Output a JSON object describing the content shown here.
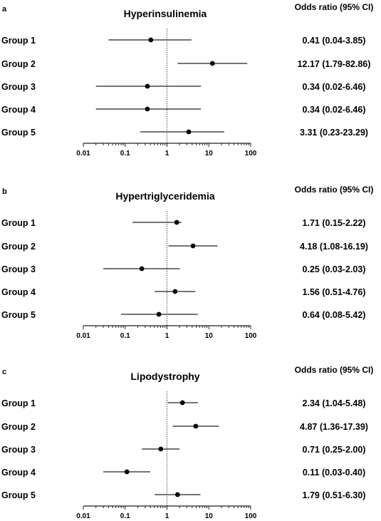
{
  "or_header": "Odds ratio (95% CI)",
  "chart_data": [
    {
      "type": "forest",
      "panel": "a",
      "title": "Hyperinsulinemia",
      "xscale": "log",
      "xlim": [
        0.01,
        100
      ],
      "xticks": [
        "0.01",
        "0.1",
        "1",
        "10",
        "100"
      ],
      "reference_line": 1,
      "groups": [
        "Group 1",
        "Group 2",
        "Group 3",
        "Group 4",
        "Group 5"
      ],
      "or": [
        0.41,
        12.17,
        0.34,
        0.34,
        3.31
      ],
      "lower": [
        0.04,
        1.79,
        0.02,
        0.02,
        0.23
      ],
      "upper": [
        3.85,
        82.86,
        6.46,
        6.46,
        23.29
      ],
      "labels": [
        "0.41 (0.04-3.85)",
        "12.17 (1.79-82.86)",
        "0.34 (0.02-6.46)",
        "0.34 (0.02-6.46)",
        "3.31 (0.23-23.29)"
      ]
    },
    {
      "type": "forest",
      "panel": "b",
      "title": "Hypertriglyceridemia",
      "xscale": "log",
      "xlim": [
        0.01,
        100
      ],
      "xticks": [
        "0.01",
        "0.1",
        "1",
        "10",
        "100"
      ],
      "reference_line": 1,
      "groups": [
        "Group 1",
        "Group 2",
        "Group 3",
        "Group 4",
        "Group 5"
      ],
      "or": [
        1.71,
        4.18,
        0.25,
        1.56,
        0.64
      ],
      "lower": [
        0.15,
        1.08,
        0.03,
        0.51,
        0.08
      ],
      "upper": [
        2.22,
        16.19,
        2.03,
        4.76,
        5.42
      ],
      "labels": [
        "1.71 (0.15-2.22)",
        "4.18 (1.08-16.19)",
        "0.25 (0.03-2.03)",
        "1.56 (0.51-4.76)",
        "0.64 (0.08-5.42)"
      ]
    },
    {
      "type": "forest",
      "panel": "c",
      "title": "Lipodystrophy",
      "xscale": "log",
      "xlim": [
        0.01,
        100
      ],
      "xticks": [
        "0.01",
        "0.1",
        "1",
        "10",
        "100"
      ],
      "reference_line": 1,
      "groups": [
        "Group 1",
        "Group 2",
        "Group 3",
        "Group 4",
        "Group 5"
      ],
      "or": [
        2.34,
        4.87,
        0.71,
        0.11,
        1.79
      ],
      "lower": [
        1.04,
        1.36,
        0.25,
        0.03,
        0.51
      ],
      "upper": [
        5.48,
        17.39,
        2.0,
        0.4,
        6.3
      ],
      "labels": [
        "2.34 (1.04-5.48)",
        "4.87 (1.36-17.39)",
        "0.71 (0.25-2.00)",
        "0.11 (0.03-0.40)",
        "1.79 (0.51-6.30)"
      ]
    }
  ]
}
